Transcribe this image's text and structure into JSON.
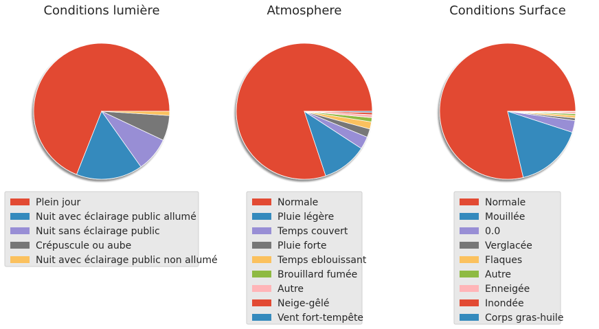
{
  "chart_data": [
    {
      "type": "pie",
      "title": "Conditions lumière",
      "labels": [
        "Plein jour",
        "Nuit avec éclairage public allumé",
        "Nuit sans éclairage public",
        "Crépuscule ou aube",
        "Nuit avec éclairage public non allumé"
      ],
      "values": [
        69.0,
        15.8,
        8.2,
        6.0,
        1.0
      ],
      "colors": [
        "#E24A33",
        "#348ABD",
        "#988ED5",
        "#777777",
        "#FBC15E"
      ],
      "start_angle_deg": 0,
      "shadow": true,
      "legend_placement": "below"
    },
    {
      "type": "pie",
      "title": "Atmosphere",
      "labels": [
        "Normale",
        "Pluie légère",
        "Temps couvert",
        "Pluie forte",
        "Temps eblouissant",
        "Brouillard fumée",
        "Autre",
        "Neige-gêlé",
        "Vent fort-tempête"
      ],
      "values": [
        80.1,
        10.7,
        3.0,
        2.0,
        1.7,
        1.0,
        0.7,
        0.5,
        0.3
      ],
      "colors": [
        "#E24A33",
        "#348ABD",
        "#988ED5",
        "#777777",
        "#FBC15E",
        "#8EBA42",
        "#FFB5B8",
        "#E24A33",
        "#348ABD"
      ],
      "start_angle_deg": 0,
      "shadow": true,
      "legend_placement": "below"
    },
    {
      "type": "pie",
      "title": "Conditions Surface",
      "labels": [
        "Normale",
        "Mouillée",
        "0.0",
        "Verglacée",
        "Flaques",
        "Autre",
        "Enneigée",
        "Inondée",
        "Corps gras-huile"
      ],
      "values": [
        78.7,
        16.3,
        2.8,
        0.6,
        0.6,
        0.4,
        0.3,
        0.2,
        0.1
      ],
      "colors": [
        "#E24A33",
        "#348ABD",
        "#988ED5",
        "#777777",
        "#FBC15E",
        "#8EBA42",
        "#FFB5B8",
        "#E24A33",
        "#348ABD"
      ],
      "start_angle_deg": 0,
      "shadow": true,
      "legend_placement": "below"
    }
  ]
}
